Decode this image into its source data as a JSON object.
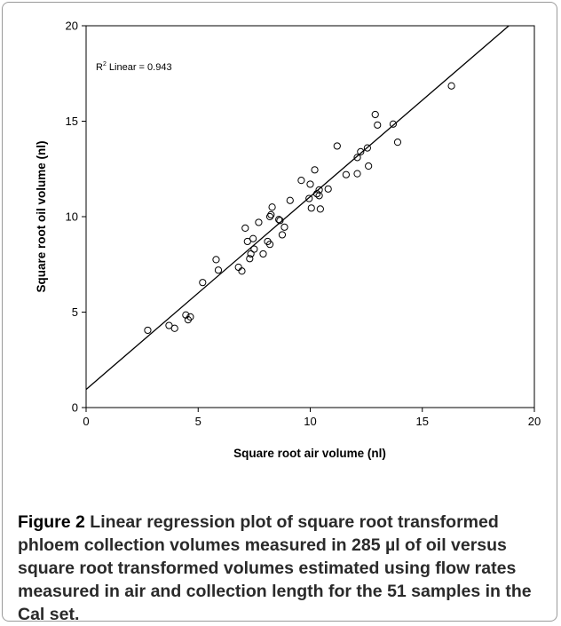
{
  "chart_data": {
    "type": "scatter",
    "xlabel": "Square root air volume (nl)",
    "ylabel": "Square root oil volume (nl)",
    "xlim": [
      0,
      20
    ],
    "ylim": [
      0,
      20
    ],
    "x_ticks": [
      "0",
      "5",
      "10",
      "15",
      "20"
    ],
    "y_ticks": [
      "0",
      "5",
      "10",
      "15",
      "20"
    ],
    "annotation": {
      "prefix": "R",
      "superscript": "2",
      "text": " Linear = 0.943"
    },
    "regression_line": {
      "intercept": 0.95,
      "slope": 1.01
    },
    "points": [
      [
        2.75,
        4.05
      ],
      [
        3.7,
        4.3
      ],
      [
        3.95,
        4.15
      ],
      [
        4.45,
        4.85
      ],
      [
        4.55,
        4.6
      ],
      [
        4.65,
        4.75
      ],
      [
        5.2,
        6.55
      ],
      [
        5.8,
        7.75
      ],
      [
        5.9,
        7.2
      ],
      [
        6.8,
        7.35
      ],
      [
        6.95,
        7.15
      ],
      [
        7.1,
        9.4
      ],
      [
        7.2,
        8.7
      ],
      [
        7.3,
        7.8
      ],
      [
        7.35,
        8.05
      ],
      [
        7.45,
        8.85
      ],
      [
        7.5,
        8.3
      ],
      [
        7.7,
        9.7
      ],
      [
        7.9,
        8.05
      ],
      [
        8.1,
        8.7
      ],
      [
        8.2,
        8.55
      ],
      [
        8.2,
        10.0
      ],
      [
        8.25,
        10.1
      ],
      [
        8.3,
        10.5
      ],
      [
        8.6,
        9.85
      ],
      [
        8.65,
        9.8
      ],
      [
        8.75,
        9.05
      ],
      [
        8.85,
        9.45
      ],
      [
        9.1,
        10.85
      ],
      [
        9.6,
        11.9
      ],
      [
        9.95,
        10.95
      ],
      [
        10.0,
        11.7
      ],
      [
        10.05,
        10.45
      ],
      [
        10.2,
        12.45
      ],
      [
        10.3,
        11.2
      ],
      [
        10.4,
        11.1
      ],
      [
        10.4,
        11.4
      ],
      [
        10.45,
        10.4
      ],
      [
        10.8,
        11.45
      ],
      [
        11.2,
        13.7
      ],
      [
        11.6,
        12.2
      ],
      [
        12.1,
        13.1
      ],
      [
        12.1,
        12.25
      ],
      [
        12.25,
        13.4
      ],
      [
        12.55,
        13.6
      ],
      [
        12.6,
        12.65
      ],
      [
        12.9,
        15.35
      ],
      [
        13.0,
        14.8
      ],
      [
        13.7,
        14.85
      ],
      [
        13.9,
        13.9
      ],
      [
        16.3,
        16.85
      ]
    ]
  },
  "caption": {
    "label": "Figure 2",
    "text": " Linear regression plot of square root transformed phloem collection volumes measured in 285 µl of oil versus square root transformed volumes estimated using flow rates measured in air and collection length for the 51 samples in the Cal set."
  }
}
